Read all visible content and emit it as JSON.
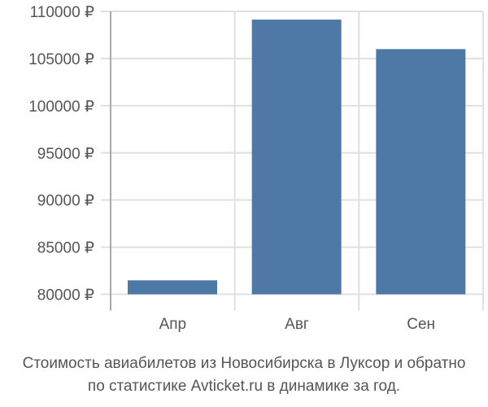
{
  "chart_data": {
    "type": "bar",
    "categories": [
      "Апр",
      "Авг",
      "Сен"
    ],
    "values": [
      81480,
      109130,
      106000
    ],
    "ylim": [
      80000,
      110000
    ],
    "yticks": [
      80000,
      85000,
      90000,
      95000,
      100000,
      105000,
      110000
    ],
    "ytick_suffix": " ₽",
    "grid": true,
    "bar_color": "#4e79a7"
  },
  "caption": {
    "line1": "Стоимость авиабилетов из Новосибирска в Луксор и обратно",
    "line2": "по статистике Avticket.ru в динамике за год."
  }
}
